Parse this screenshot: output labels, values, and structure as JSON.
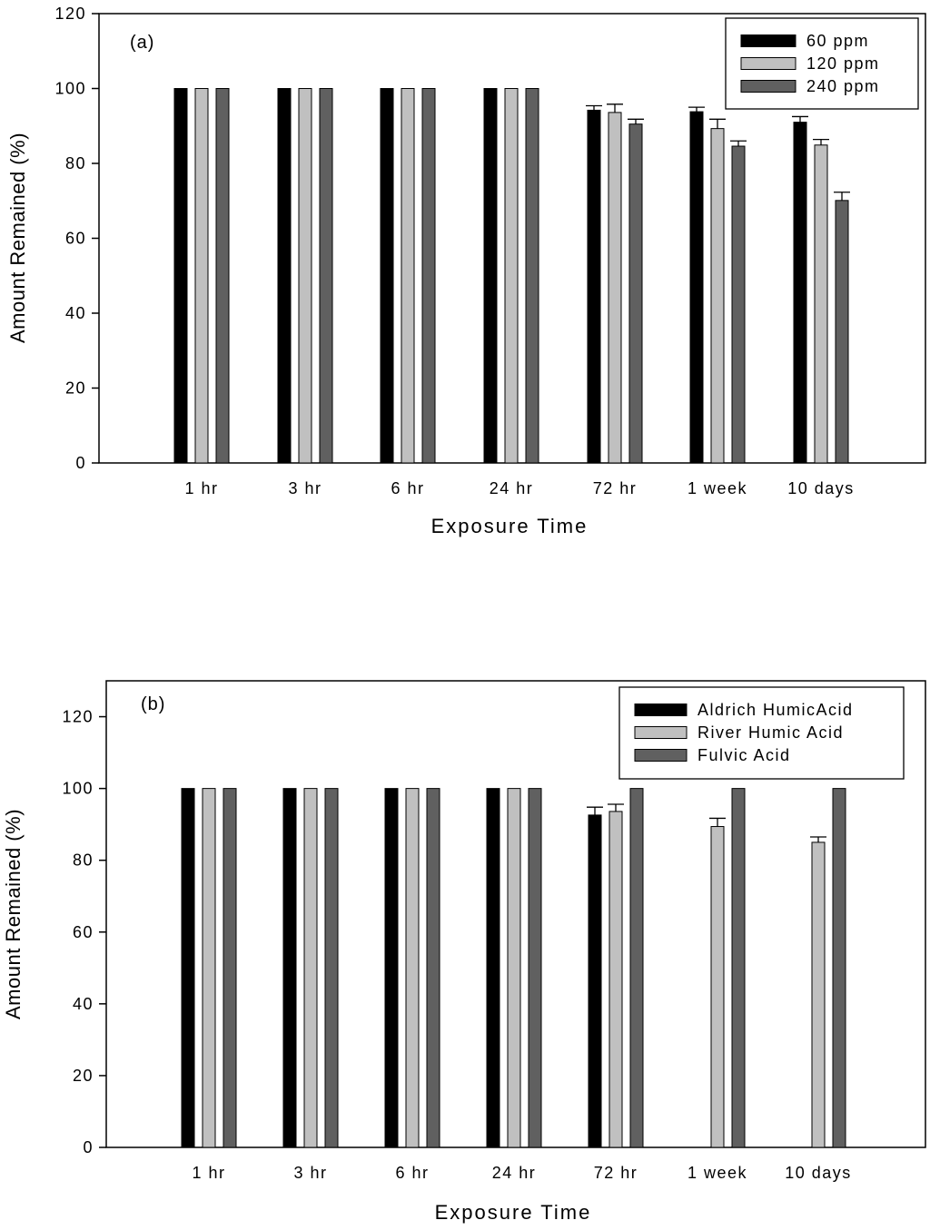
{
  "chart_data": [
    {
      "type": "bar",
      "panel_label": "(a)",
      "title": "",
      "xlabel": "Exposure Time",
      "ylabel": "Amount Remained (%)",
      "categories": [
        "1 hr",
        "3 hr",
        "6 hr",
        "24 hr",
        "72 hr",
        "1 week",
        "10 days"
      ],
      "ylim": [
        0,
        120
      ],
      "yticks": [
        0,
        20,
        40,
        60,
        80,
        100,
        120
      ],
      "grid": false,
      "legend_position": "top-right",
      "series": [
        {
          "name": "60 ppm",
          "color": "#000000",
          "values": [
            100,
            100,
            100,
            100,
            94.2,
            93.8,
            91.0
          ],
          "errors": [
            0,
            0,
            0,
            0,
            1.2,
            1.2,
            1.5
          ]
        },
        {
          "name": "120 ppm",
          "color": "#c0c0c0",
          "values": [
            100,
            100,
            100,
            100,
            93.6,
            89.3,
            84.9
          ],
          "errors": [
            0,
            0,
            0,
            0,
            2.2,
            2.5,
            1.5
          ]
        },
        {
          "name": "240 ppm",
          "color": "#606060",
          "values": [
            100,
            100,
            100,
            100,
            90.5,
            84.6,
            70.1
          ],
          "errors": [
            0,
            0,
            0,
            0,
            1.3,
            1.4,
            2.2
          ]
        }
      ]
    },
    {
      "type": "bar",
      "panel_label": "(b)",
      "title": "",
      "xlabel": "Exposure Time",
      "ylabel": "Amount Remained (%)",
      "categories": [
        "1 hr",
        "3 hr",
        "6 hr",
        "24 hr",
        "72 hr",
        "1 week",
        "10 days"
      ],
      "ylim": [
        0,
        130
      ],
      "yticks": [
        0,
        20,
        40,
        60,
        80,
        100,
        120
      ],
      "grid": false,
      "legend_position": "top-right",
      "series": [
        {
          "name": "Aldrich HumicAcid",
          "color": "#000000",
          "values": [
            100,
            100,
            100,
            100,
            92.6,
            null,
            null
          ],
          "errors": [
            0,
            0,
            0,
            0,
            2.2,
            0,
            0
          ]
        },
        {
          "name": "River Humic Acid",
          "color": "#c0c0c0",
          "values": [
            100,
            100,
            100,
            100,
            93.6,
            89.4,
            85.0
          ],
          "errors": [
            0,
            0,
            0,
            0,
            2.0,
            2.3,
            1.5
          ]
        },
        {
          "name": "Fulvic Acid",
          "color": "#606060",
          "values": [
            100,
            100,
            100,
            100,
            100,
            100,
            100
          ],
          "errors": [
            0,
            0,
            0,
            0,
            0,
            0,
            0
          ]
        }
      ]
    }
  ]
}
